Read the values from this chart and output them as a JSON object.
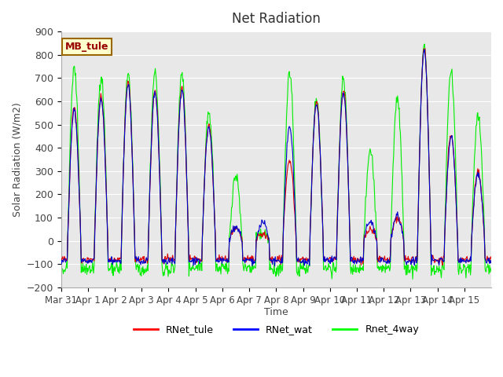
{
  "title": "Net Radiation",
  "xlabel": "Time",
  "ylabel": "Solar Radiation (W/m2)",
  "ylim": [
    -200,
    900
  ],
  "yticks": [
    -200,
    -100,
    0,
    100,
    200,
    300,
    400,
    500,
    600,
    700,
    800,
    900
  ],
  "xtick_labels": [
    "Mar 31",
    "Apr 1",
    "Apr 2",
    "Apr 3",
    "Apr 4",
    "Apr 5",
    "Apr 6",
    "Apr 7",
    "Apr 8",
    "Apr 9",
    "Apr 10",
    "Apr 11",
    "Apr 12",
    "Apr 13",
    "Apr 14",
    "Apr 15"
  ],
  "legend_labels": [
    "RNet_tule",
    "RNet_wat",
    "Rnet_4way"
  ],
  "legend_colors": [
    "#ff0000",
    "#0000ff",
    "#00ff00"
  ],
  "annotation_text": "MB_tule",
  "annotation_bg": "#ffffcc",
  "annotation_border": "#996600",
  "background_color": "#e8e8e8",
  "line_colors": {
    "tule": "#dd0000",
    "wat": "#0000cc",
    "4way": "#00ee00"
  },
  "days": 16
}
